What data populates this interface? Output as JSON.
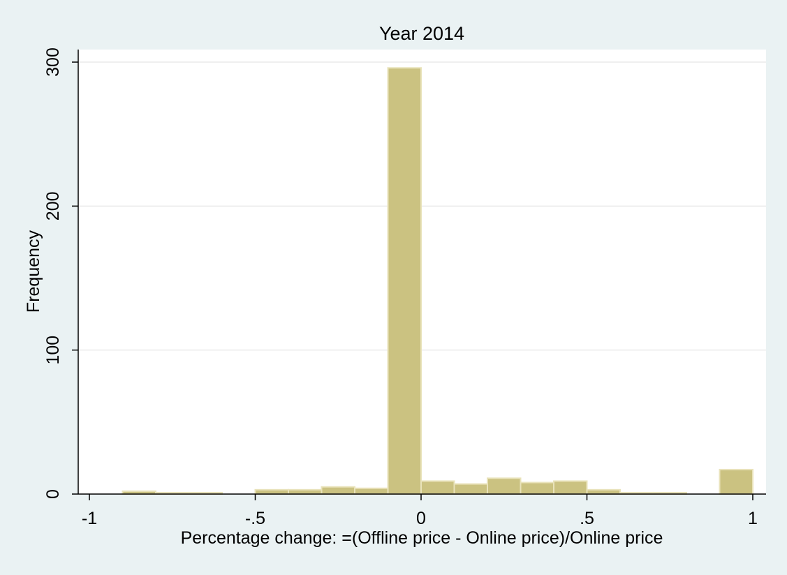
{
  "chart_data": {
    "type": "bar",
    "title": "Year 2014",
    "xlabel": "Percentage change: =(Offline price - Online price)/Online price",
    "ylabel": "Frequency",
    "xlim": [
      -1,
      1
    ],
    "ylim": [
      0,
      310
    ],
    "bin_width": 0.1,
    "x_ticks": [
      {
        "value": -1,
        "label": "-1"
      },
      {
        "value": -0.5,
        "label": "-.5"
      },
      {
        "value": 0,
        "label": "0"
      },
      {
        "value": 0.5,
        "label": ".5"
      },
      {
        "value": 1,
        "label": "1"
      }
    ],
    "y_ticks": [
      {
        "value": 0,
        "label": "0"
      },
      {
        "value": 100,
        "label": "100"
      },
      {
        "value": 200,
        "label": "200"
      },
      {
        "value": 300,
        "label": "300"
      }
    ],
    "bins": [
      {
        "start": -0.9,
        "value": 2
      },
      {
        "start": -0.8,
        "value": 1
      },
      {
        "start": -0.7,
        "value": 1
      },
      {
        "start": -0.5,
        "value": 3
      },
      {
        "start": -0.4,
        "value": 3
      },
      {
        "start": -0.3,
        "value": 5
      },
      {
        "start": -0.2,
        "value": 4
      },
      {
        "start": -0.1,
        "value": 296
      },
      {
        "start": 0.0,
        "value": 9
      },
      {
        "start": 0.1,
        "value": 7
      },
      {
        "start": 0.2,
        "value": 11
      },
      {
        "start": 0.3,
        "value": 8
      },
      {
        "start": 0.4,
        "value": 9
      },
      {
        "start": 0.5,
        "value": 3
      },
      {
        "start": 0.6,
        "value": 1
      },
      {
        "start": 0.7,
        "value": 1
      },
      {
        "start": 0.9,
        "value": 17
      }
    ],
    "grid": true,
    "colors": {
      "bar_fill": "#cbc281",
      "bar_stroke": "#e9e3bb",
      "plot_background": "#ffffff",
      "page_background": "#eaf2f3",
      "grid": "#eaeaea"
    }
  }
}
